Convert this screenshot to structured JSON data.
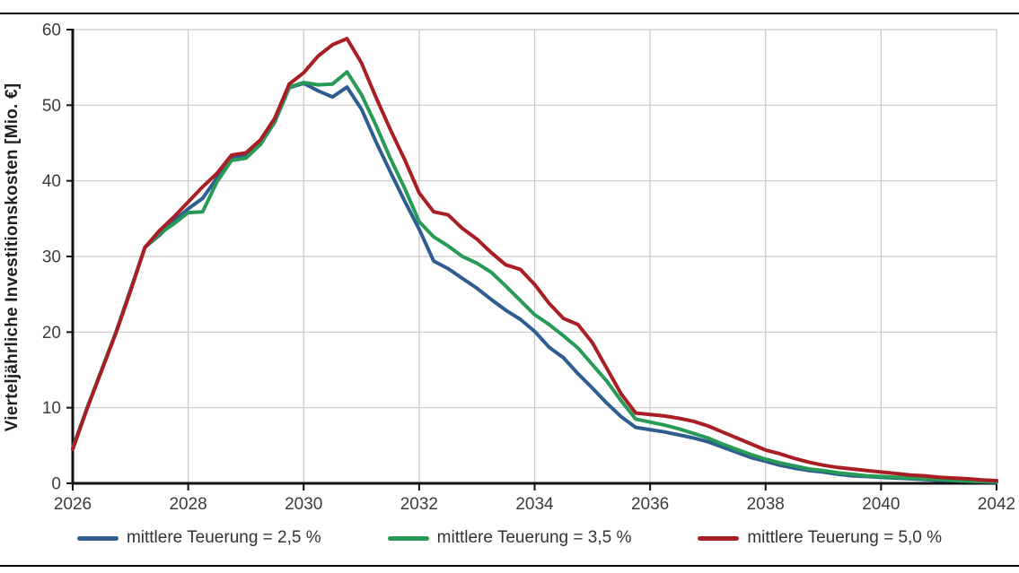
{
  "chart_data": {
    "type": "line",
    "title": "",
    "xlabel": "",
    "ylabel": "Vierteljährliche Investitionskosten [Mio. €]",
    "xlim": [
      2026,
      2042
    ],
    "ylim": [
      0,
      60
    ],
    "x_ticks": [
      2026,
      2028,
      2030,
      2032,
      2034,
      2036,
      2038,
      2040,
      2042
    ],
    "y_ticks": [
      0,
      10,
      20,
      30,
      40,
      50,
      60
    ],
    "grid": true,
    "legend_position": "bottom",
    "x": [
      2026,
      2026.25,
      2026.5,
      2026.75,
      2027,
      2027.25,
      2027.5,
      2027.75,
      2028,
      2028.25,
      2028.5,
      2028.75,
      2029,
      2029.25,
      2029.5,
      2029.75,
      2030,
      2030.25,
      2030.5,
      2030.75,
      2031,
      2031.25,
      2031.5,
      2031.75,
      2032,
      2032.25,
      2032.5,
      2032.75,
      2033,
      2033.25,
      2033.5,
      2033.75,
      2034,
      2034.25,
      2034.5,
      2034.75,
      2035,
      2035.25,
      2035.5,
      2035.75,
      2036,
      2036.25,
      2036.5,
      2036.75,
      2037,
      2037.25,
      2037.5,
      2037.75,
      2038,
      2038.25,
      2038.5,
      2038.75,
      2039,
      2039.25,
      2039.5,
      2039.75,
      2040,
      2040.25,
      2040.5,
      2040.75,
      2041,
      2041.25,
      2041.5,
      2041.75,
      2042
    ],
    "series": [
      {
        "name": "mittlere Teuerung = 2,5 %",
        "color": "#2E5E90",
        "values": [
          4.7,
          10.0,
          15.0,
          20.0,
          25.6,
          31.2,
          32.8,
          34.7,
          36.3,
          37.7,
          40.4,
          43.0,
          43.3,
          44.8,
          47.8,
          52.3,
          52.9,
          51.9,
          51.1,
          52.4,
          49.5,
          45.2,
          41.2,
          37.3,
          33.6,
          29.4,
          28.4,
          27.1,
          25.8,
          24.3,
          22.9,
          21.7,
          20.1,
          18.0,
          16.6,
          14.5,
          12.6,
          10.6,
          8.8,
          7.4,
          7.1,
          6.8,
          6.4,
          6.0,
          5.5,
          4.8,
          4.1,
          3.4,
          2.9,
          2.4,
          2.0,
          1.7,
          1.5,
          1.2,
          1.0,
          0.9,
          0.8,
          0.7,
          0.6,
          0.5,
          0.4,
          0.35,
          0.3,
          0.2,
          0.15
        ]
      },
      {
        "name": "mittlere Teuerung = 3,5 %",
        "color": "#279A56",
        "values": [
          4.6,
          10.0,
          15.0,
          20.0,
          25.5,
          31.2,
          33.0,
          34.3,
          35.8,
          35.9,
          39.9,
          42.7,
          43.0,
          44.8,
          47.9,
          52.4,
          53.0,
          52.7,
          52.8,
          54.4,
          51.4,
          47.4,
          43.0,
          39.0,
          34.6,
          32.6,
          31.4,
          30.0,
          29.1,
          27.9,
          26.1,
          24.2,
          22.3,
          21.0,
          19.5,
          17.9,
          15.7,
          13.5,
          10.9,
          8.5,
          8.1,
          7.7,
          7.2,
          6.6,
          6.0,
          5.2,
          4.5,
          3.8,
          3.2,
          2.7,
          2.3,
          1.9,
          1.7,
          1.4,
          1.2,
          1.0,
          0.9,
          0.8,
          0.7,
          0.6,
          0.5,
          0.4,
          0.3,
          0.25,
          0.2
        ]
      },
      {
        "name": "mittlere Teuerung = 5,0 %",
        "color": "#A81E22",
        "values": [
          4.5,
          9.9,
          14.9,
          19.9,
          25.4,
          31.2,
          33.4,
          35.2,
          37.2,
          39.2,
          41.0,
          43.4,
          43.7,
          45.4,
          48.3,
          52.8,
          54.3,
          56.5,
          58.0,
          58.8,
          55.6,
          51.1,
          46.8,
          42.8,
          38.4,
          35.9,
          35.5,
          33.7,
          32.3,
          30.5,
          28.9,
          28.3,
          26.3,
          23.8,
          21.8,
          21.0,
          18.6,
          15.2,
          11.8,
          9.3,
          9.1,
          8.9,
          8.6,
          8.2,
          7.6,
          6.8,
          6.0,
          5.2,
          4.4,
          3.9,
          3.3,
          2.8,
          2.4,
          2.1,
          1.9,
          1.7,
          1.5,
          1.3,
          1.1,
          1.0,
          0.8,
          0.7,
          0.6,
          0.45,
          0.35
        ]
      }
    ]
  }
}
